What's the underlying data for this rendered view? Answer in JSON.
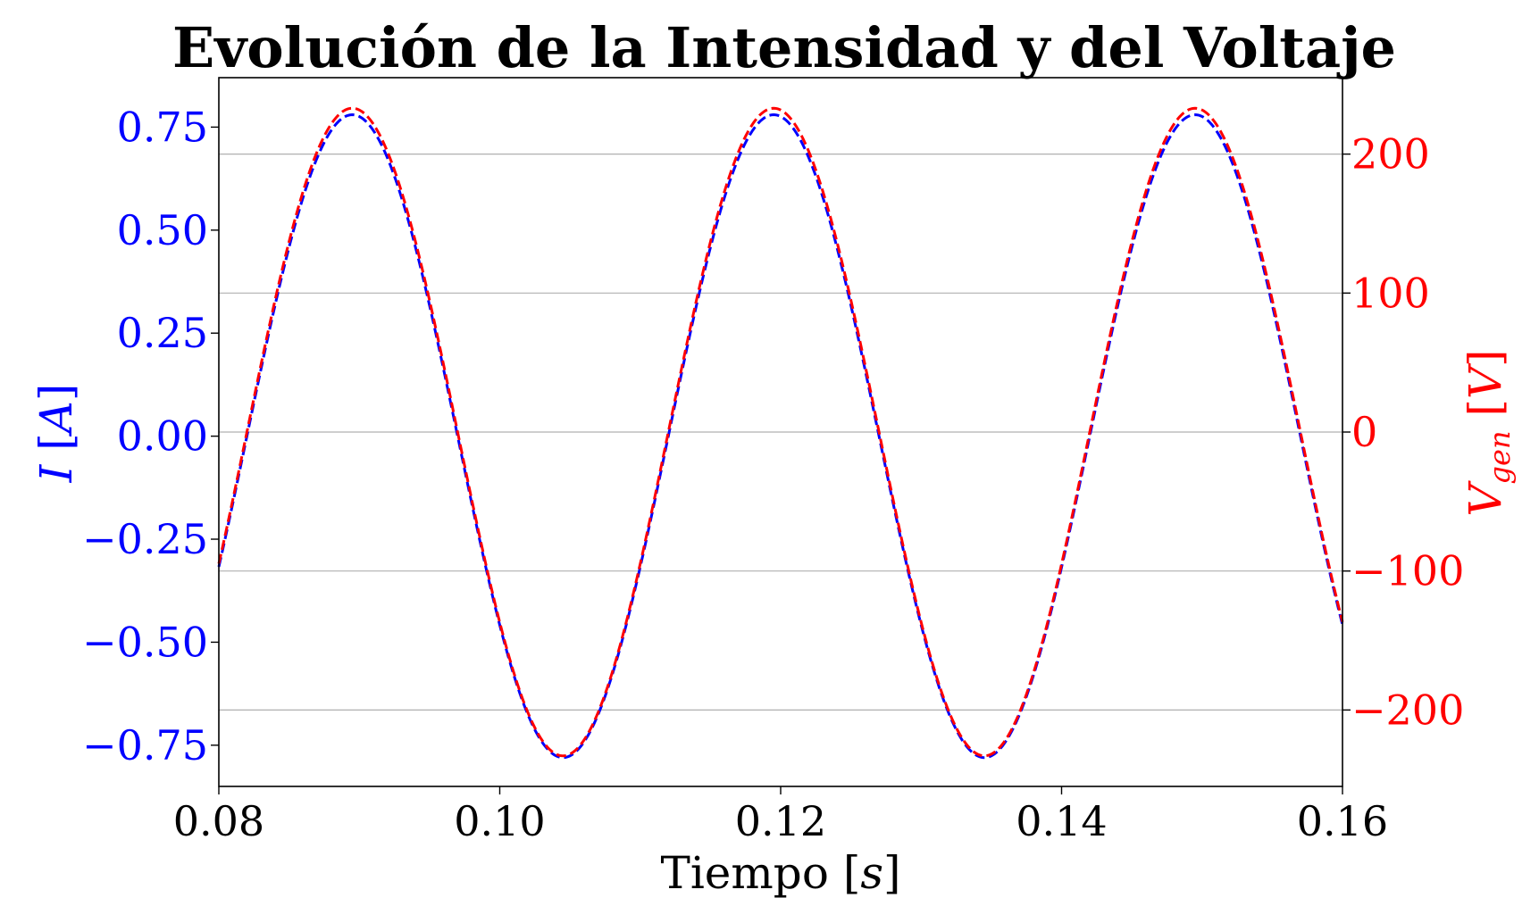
{
  "chart_data": {
    "type": "line",
    "title": "Evolución de la Intensidad y del Voltaje",
    "xlabel": "Tiempo [s]",
    "ylabel_left": "I [A]",
    "ylabel_right": "V_gen [V]",
    "xlim": [
      0.08,
      0.16
    ],
    "ylim_left": [
      -0.85,
      0.87
    ],
    "ylim_right": [
      -255,
      255
    ],
    "x_ticks": [
      "0.08",
      "0.10",
      "0.12",
      "0.14",
      "0.16"
    ],
    "left_ticks": [
      "−0.75",
      "−0.50",
      "−0.25",
      "0.00",
      "0.25",
      "0.50",
      "0.75"
    ],
    "right_ticks": [
      "−200",
      "−100",
      "0",
      "100",
      "200"
    ],
    "grid": "right-axis horizontal lines",
    "series": [
      {
        "name": "I",
        "axis": "left",
        "color": "#0000ff",
        "style": "dashed",
        "amplitude": 0.78,
        "frequency_hz": 33.33,
        "peak_times": [
          0.0895,
          0.1195,
          0.1495
        ],
        "x": [
          0.08,
          0.0895,
          0.097,
          0.1045,
          0.112,
          0.1195,
          0.127,
          0.1345,
          0.142,
          0.1495,
          0.157,
          0.16
        ],
        "values": [
          -0.31,
          0.78,
          0.0,
          -0.78,
          0.0,
          0.78,
          0.0,
          -0.78,
          0.0,
          0.78,
          0.0,
          -0.53
        ]
      },
      {
        "name": "V_gen",
        "axis": "right",
        "color": "#ff0000",
        "style": "dashed",
        "amplitude": 233,
        "frequency_hz": 33.33,
        "peak_times": [
          0.0895,
          0.1195,
          0.1495
        ],
        "x": [
          0.08,
          0.0895,
          0.097,
          0.1045,
          0.112,
          0.1195,
          0.127,
          0.1345,
          0.142,
          0.1495,
          0.157,
          0.16
        ],
        "values": [
          -93,
          233,
          0,
          -233,
          0,
          233,
          0,
          -233,
          0,
          233,
          0,
          -158
        ]
      }
    ]
  },
  "colors": {
    "left_axis": "#0000ff",
    "right_axis": "#ff0000",
    "grid": "#b0b0b0"
  }
}
